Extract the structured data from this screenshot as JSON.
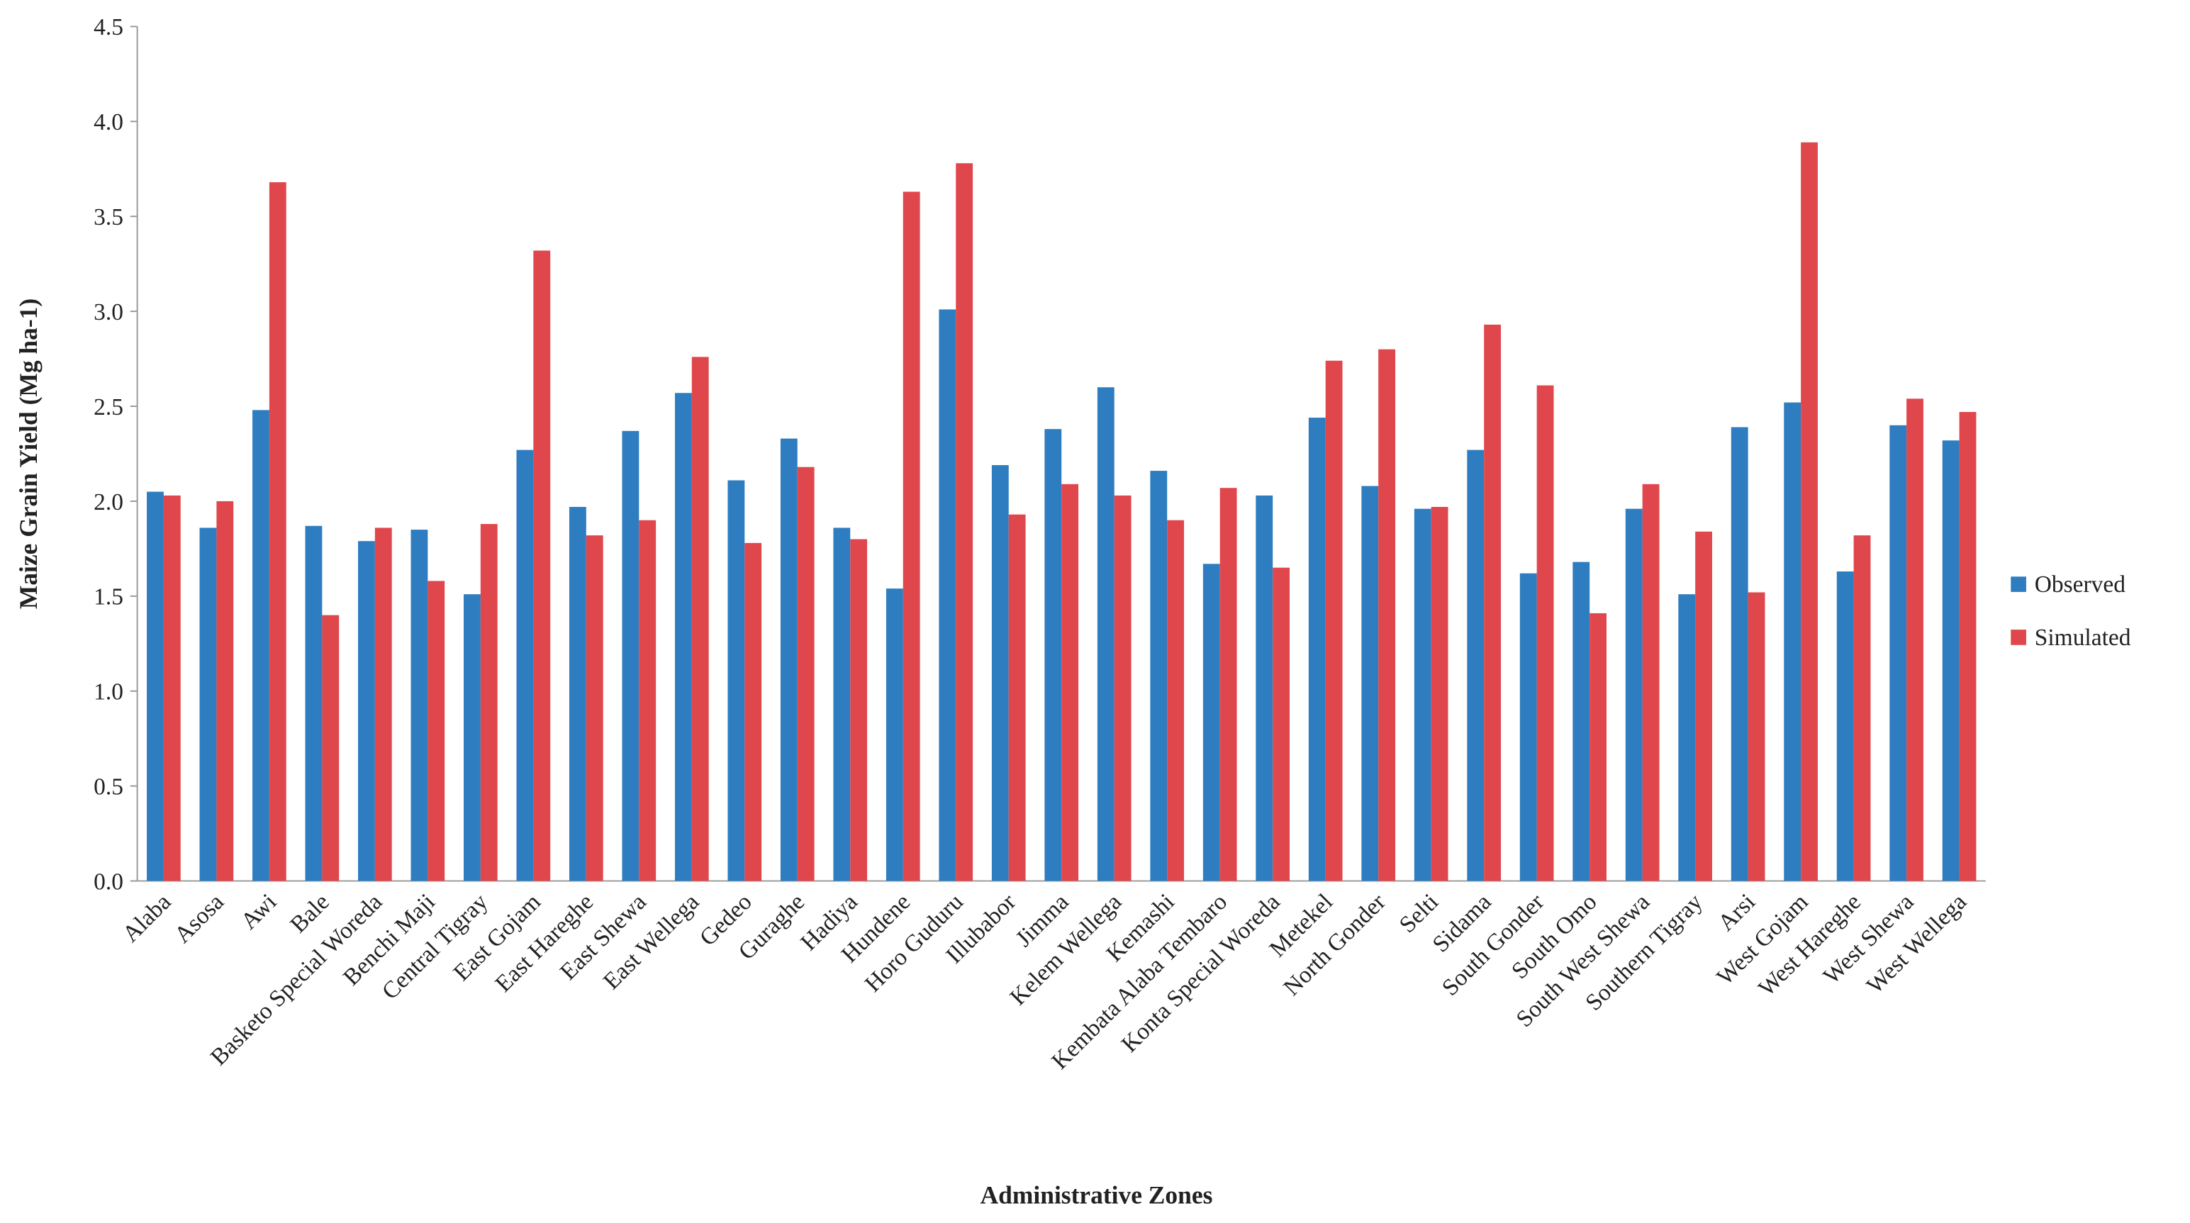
{
  "chart_data": {
    "type": "bar",
    "x_label": "Administrative Zones",
    "y_label": "Maize Grain Yield  (Mg ha-1)",
    "categories": [
      "Alaba",
      "Asosa",
      "Awi",
      "Bale",
      "Basketo Special Woreda",
      "Benchi Maji",
      "Central Tigray",
      "East Gojam",
      "East Hareghe",
      "East Shewa",
      "East Wellega",
      "Gedeo",
      "Guraghe",
      "Hadiya",
      "Hundene",
      "Horo Guduru",
      "Illubabor",
      "Jimma",
      "Kelem Wellega",
      "Kemashi",
      "Kembata Alaba Tembaro",
      "Konta Special Woreda",
      "Metekel",
      "North Gonder",
      "Selti",
      "Sidama",
      "South Gonder",
      "South Omo",
      "South West Shewa",
      "Southern Tigray",
      "Arsi",
      "West Gojam",
      "West Hareghe",
      "West Shewa",
      "West Wellega"
    ],
    "series": [
      {
        "name": "Observed",
        "color": "#2e7dc0",
        "values": [
          2.05,
          1.86,
          2.48,
          1.87,
          1.79,
          1.85,
          1.51,
          2.27,
          1.97,
          2.37,
          2.57,
          2.11,
          2.33,
          1.86,
          1.54,
          3.01,
          2.19,
          2.38,
          2.6,
          2.16,
          1.67,
          2.03,
          2.44,
          2.08,
          1.96,
          2.27,
          1.62,
          1.68,
          1.96,
          1.51,
          2.39,
          2.52,
          1.63,
          2.4,
          2.32
        ]
      },
      {
        "name": "Simulated",
        "color": "#e0474c",
        "values": [
          2.03,
          2.0,
          3.68,
          1.4,
          1.86,
          1.58,
          1.88,
          3.32,
          1.82,
          1.9,
          2.76,
          1.78,
          2.18,
          1.8,
          3.63,
          3.78,
          1.93,
          2.09,
          2.03,
          1.9,
          2.07,
          1.65,
          2.74,
          2.8,
          1.97,
          2.93,
          2.61,
          1.41,
          2.09,
          1.84,
          1.52,
          3.89,
          1.82,
          2.54,
          2.47
        ]
      }
    ],
    "ylim": [
      0,
      4.5
    ],
    "yticks": [
      {
        "value": 0,
        "label": "0.0"
      },
      0.5,
      {
        "value": 1,
        "label": "1.0"
      },
      1.5,
      {
        "value": 2,
        "label": "2.0"
      },
      2.5,
      {
        "value": 3,
        "label": "3.0"
      },
      3.5,
      {
        "value": 4,
        "label": "4.0"
      },
      4.5
    ],
    "grid": false,
    "legend": "right"
  }
}
